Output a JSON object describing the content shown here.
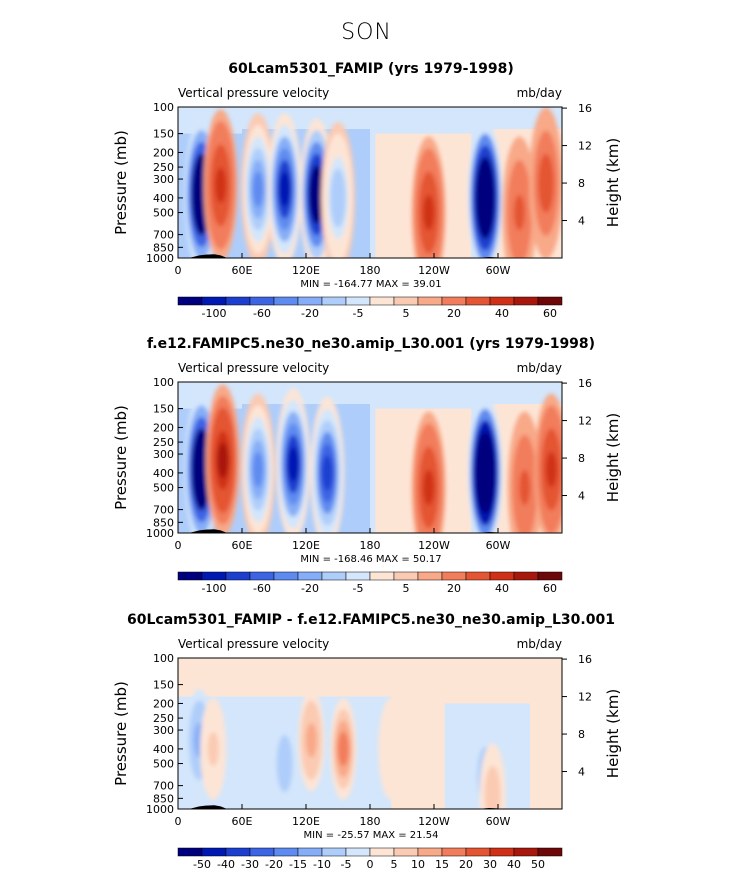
{
  "season": "SON",
  "chart_data": [
    {
      "type": "heatmap",
      "title": "60Lcam5301_FAMIP (yrs 1979-1998)",
      "left_string": "Vertical pressure velocity",
      "right_string": "mb/day",
      "ylabel": "Pressure (mb)",
      "ylabel_right": "Height (km)",
      "xticks": [
        "0",
        "60E",
        "120E",
        "180",
        "120W",
        "60W"
      ],
      "yticks": [
        "100",
        "150",
        "200",
        "250",
        "300",
        "400",
        "500",
        "700",
        "850",
        "1000"
      ],
      "height_ticks": [
        "16",
        "12",
        "8",
        "4"
      ],
      "min_max": "MIN = -164.77  MAX =  39.01",
      "colorbar_levels": [
        "-100",
        "-60",
        "-20",
        "-5",
        "5",
        "20",
        "40",
        "60"
      ],
      "colorbar_colors": [
        "#00007f",
        "#0019b2",
        "#1c3fcf",
        "#3c64e3",
        "#5e8bf0",
        "#86adf7",
        "#aecdfa",
        "#d3e6fb",
        "#fde5d6",
        "#fbcab2",
        "#f8a988",
        "#f27d5c",
        "#e45533",
        "#cf3017",
        "#a8170c",
        "#6e0708"
      ],
      "x_range": [
        0,
        360
      ],
      "y_range_mb": [
        100,
        1000
      ],
      "features": [
        {
          "lon": 22,
          "p": 380,
          "sign": -1,
          "value": -140
        },
        {
          "lon": 40,
          "p": 330,
          "sign": 1,
          "value": 35
        },
        {
          "lon": 75,
          "p": 350,
          "sign": -1,
          "value": -60
        },
        {
          "lon": 100,
          "p": 350,
          "sign": -1,
          "value": -90
        },
        {
          "lon": 130,
          "p": 380,
          "sign": -1,
          "value": -120
        },
        {
          "lon": 150,
          "p": 400,
          "sign": -1,
          "value": -40
        },
        {
          "lon": 235,
          "p": 500,
          "sign": 1,
          "value": 30
        },
        {
          "lon": 288,
          "p": 400,
          "sign": -1,
          "value": -160
        },
        {
          "lon": 320,
          "p": 500,
          "sign": 1,
          "value": 20
        },
        {
          "lon": 345,
          "p": 320,
          "sign": 1,
          "value": 25
        }
      ]
    },
    {
      "type": "heatmap",
      "title": "f.e12.FAMIPC5.ne30_ne30.amip_L30.001 (yrs 1979-1998)",
      "left_string": "Vertical pressure velocity",
      "right_string": "mb/day",
      "ylabel": "Pressure (mb)",
      "ylabel_right": "Height (km)",
      "xticks": [
        "0",
        "60E",
        "120E",
        "180",
        "120W",
        "60W"
      ],
      "yticks": [
        "100",
        "150",
        "200",
        "250",
        "300",
        "400",
        "500",
        "700",
        "850",
        "1000"
      ],
      "height_ticks": [
        "16",
        "12",
        "8",
        "4"
      ],
      "min_max": "MIN = -168.46  MAX =  50.17",
      "colorbar_levels": [
        "-100",
        "-60",
        "-20",
        "-5",
        "5",
        "20",
        "40",
        "60"
      ],
      "colorbar_colors": [
        "#00007f",
        "#0019b2",
        "#1c3fcf",
        "#3c64e3",
        "#5e8bf0",
        "#86adf7",
        "#aecdfa",
        "#d3e6fb",
        "#fde5d6",
        "#fbcab2",
        "#f8a988",
        "#f27d5c",
        "#e45533",
        "#cf3017",
        "#a8170c",
        "#6e0708"
      ],
      "x_range": [
        0,
        360
      ],
      "y_range_mb": [
        100,
        1000
      ],
      "features": [
        {
          "lon": 22,
          "p": 380,
          "sign": -1,
          "value": -140
        },
        {
          "lon": 42,
          "p": 330,
          "sign": 1,
          "value": 40
        },
        {
          "lon": 75,
          "p": 380,
          "sign": -1,
          "value": -60
        },
        {
          "lon": 108,
          "p": 350,
          "sign": -1,
          "value": -90
        },
        {
          "lon": 140,
          "p": 400,
          "sign": -1,
          "value": -80
        },
        {
          "lon": 235,
          "p": 500,
          "sign": 1,
          "value": 30
        },
        {
          "lon": 288,
          "p": 400,
          "sign": -1,
          "value": -165
        },
        {
          "lon": 325,
          "p": 500,
          "sign": 1,
          "value": 20
        },
        {
          "lon": 350,
          "p": 380,
          "sign": 1,
          "value": 30
        }
      ]
    },
    {
      "type": "heatmap",
      "title": "60Lcam5301_FAMIP - f.e12.FAMIPC5.ne30_ne30.amip_L30.001",
      "left_string": "Vertical pressure velocity",
      "right_string": "mb/day",
      "ylabel": "Pressure (mb)",
      "ylabel_right": "Height (km)",
      "xticks": [
        "0",
        "60E",
        "120E",
        "180",
        "120W",
        "60W"
      ],
      "yticks": [
        "100",
        "150",
        "200",
        "250",
        "300",
        "400",
        "500",
        "700",
        "850",
        "1000"
      ],
      "height_ticks": [
        "16",
        "12",
        "8",
        "4"
      ],
      "min_max": "MIN = -25.57  MAX =  21.54",
      "colorbar_levels": [
        "-50",
        "-40",
        "-30",
        "-20",
        "-15",
        "-10",
        "-5",
        "0",
        "5",
        "10",
        "15",
        "20",
        "30",
        "40",
        "50"
      ],
      "colorbar_colors": [
        "#00007f",
        "#0019b2",
        "#1c3fcf",
        "#3c64e3",
        "#5e8bf0",
        "#86adf7",
        "#aecdfa",
        "#d3e6fb",
        "#fde5d6",
        "#fbcab2",
        "#f8a988",
        "#f27d5c",
        "#e45533",
        "#cf3017",
        "#a8170c",
        "#6e0708"
      ],
      "x_range": [
        0,
        360
      ],
      "y_range_mb": [
        100,
        1000
      ],
      "features": [
        {
          "lon": 20,
          "p": 350,
          "sign": -1,
          "value": -15
        },
        {
          "lon": 33,
          "p": 400,
          "sign": 1,
          "value": 8
        },
        {
          "lon": 100,
          "p": 500,
          "sign": -1,
          "value": -10
        },
        {
          "lon": 125,
          "p": 350,
          "sign": 1,
          "value": 15
        },
        {
          "lon": 155,
          "p": 400,
          "sign": 1,
          "value": 21
        },
        {
          "lon": 200,
          "p": 400,
          "sign": 1,
          "value": 5
        },
        {
          "lon": 288,
          "p": 600,
          "sign": -1,
          "value": -12
        },
        {
          "lon": 295,
          "p": 800,
          "sign": 1,
          "value": 12
        }
      ]
    }
  ]
}
